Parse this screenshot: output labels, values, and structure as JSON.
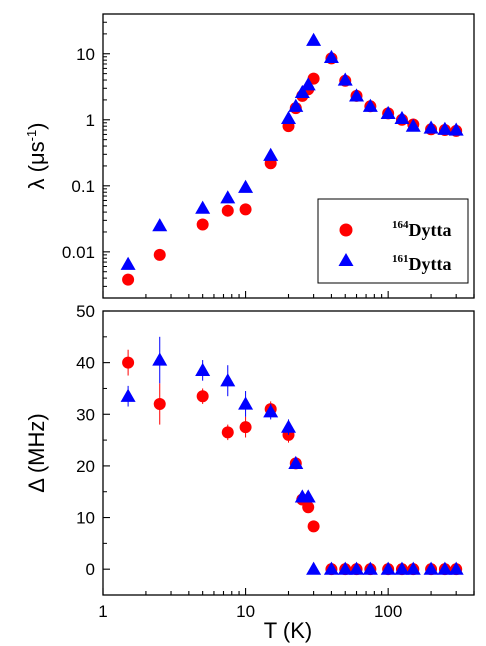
{
  "chart_data": [
    {
      "type": "scatter",
      "yscale": "log",
      "xscale": "log",
      "ylabel": "λ (μs",
      "ylabel_sup": "-1",
      "ylabel_close": ")",
      "xlabel": "",
      "xlim": [
        1,
        400
      ],
      "ylim": [
        0.002,
        40
      ],
      "yticks": [
        0.01,
        0.1,
        1,
        10
      ],
      "ytick_labels": [
        "0.01",
        "0.1",
        "1",
        "10"
      ],
      "legend_position": "lower-right",
      "series": [
        {
          "name": "Dytta",
          "name_sup": "164",
          "marker": "circle",
          "color": "#ff0000",
          "x": [
            1.5,
            2.5,
            5,
            7.5,
            10,
            15,
            20,
            22.5,
            25,
            27.5,
            30,
            40,
            50,
            60,
            75,
            100,
            125,
            150,
            200,
            250,
            300
          ],
          "y": [
            0.0038,
            0.009,
            0.026,
            0.042,
            0.044,
            0.22,
            0.8,
            1.5,
            2.3,
            2.9,
            4.2,
            8.5,
            3.9,
            2.3,
            1.6,
            1.25,
            1.0,
            0.85,
            0.72,
            0.7,
            0.68
          ]
        },
        {
          "name": "Dytta",
          "name_sup": "161",
          "marker": "triangle",
          "color": "#0000ff",
          "x": [
            1.5,
            2.5,
            5,
            7.5,
            10,
            15,
            20,
            22.5,
            25,
            27.5,
            30,
            40,
            50,
            60,
            75,
            100,
            125,
            150,
            200,
            250,
            300
          ],
          "y": [
            0.0065,
            0.025,
            0.046,
            0.066,
            0.095,
            0.29,
            1.05,
            1.6,
            2.6,
            3.4,
            16,
            8.8,
            4.0,
            2.3,
            1.6,
            1.25,
            1.05,
            0.8,
            0.75,
            0.72,
            0.7
          ]
        }
      ]
    },
    {
      "type": "scatter",
      "xscale": "log",
      "ylabel": "Δ (MHz)",
      "xlabel": "T (K)",
      "xlim": [
        1,
        400
      ],
      "ylim": [
        -5,
        50
      ],
      "yticks": [
        0,
        10,
        20,
        30,
        40,
        50
      ],
      "ytick_labels": [
        "0",
        "10",
        "20",
        "30",
        "40",
        "50"
      ],
      "xticks": [
        1,
        10,
        100
      ],
      "xtick_labels": [
        "1",
        "10",
        "100"
      ],
      "series": [
        {
          "name": "Dytta",
          "name_sup": "164",
          "marker": "circle",
          "color": "#ff0000",
          "x": [
            1.5,
            2.5,
            5,
            7.5,
            10,
            15,
            20,
            22.5,
            25,
            27.5,
            30,
            40,
            50,
            60,
            75,
            100,
            125,
            150,
            200,
            250,
            300
          ],
          "y": [
            40,
            32,
            33.5,
            26.5,
            27.5,
            31,
            26,
            20.5,
            13.5,
            12,
            8.3,
            0,
            0,
            0,
            0,
            0,
            0,
            0,
            0,
            0,
            0
          ],
          "err": [
            2.5,
            4,
            1.5,
            1.5,
            2,
            1.5,
            1.5,
            1,
            1,
            1,
            0.5,
            0.3,
            0.3,
            0.3,
            0.3,
            0.3,
            0.3,
            0.3,
            0.3,
            0.3,
            0.3
          ]
        },
        {
          "name": "Dytta",
          "name_sup": "161",
          "marker": "triangle",
          "color": "#0000ff",
          "x": [
            1.5,
            2.5,
            5,
            7.5,
            10,
            15,
            20,
            22.5,
            25,
            27.5,
            30,
            40,
            50,
            60,
            75,
            100,
            125,
            150,
            200,
            250,
            300
          ],
          "y": [
            33.5,
            40.5,
            38.5,
            36.5,
            32,
            30.5,
            27.5,
            20.5,
            14,
            14,
            0,
            0,
            0,
            0,
            0,
            0,
            0,
            0,
            0,
            0,
            0
          ],
          "err": [
            2,
            4.5,
            2,
            3,
            2.5,
            1.5,
            1.5,
            1,
            1,
            1,
            0.3,
            0.3,
            0.3,
            0.3,
            0.3,
            0.3,
            0.3,
            0.3,
            0.3,
            0.3,
            0.3
          ]
        }
      ]
    }
  ]
}
